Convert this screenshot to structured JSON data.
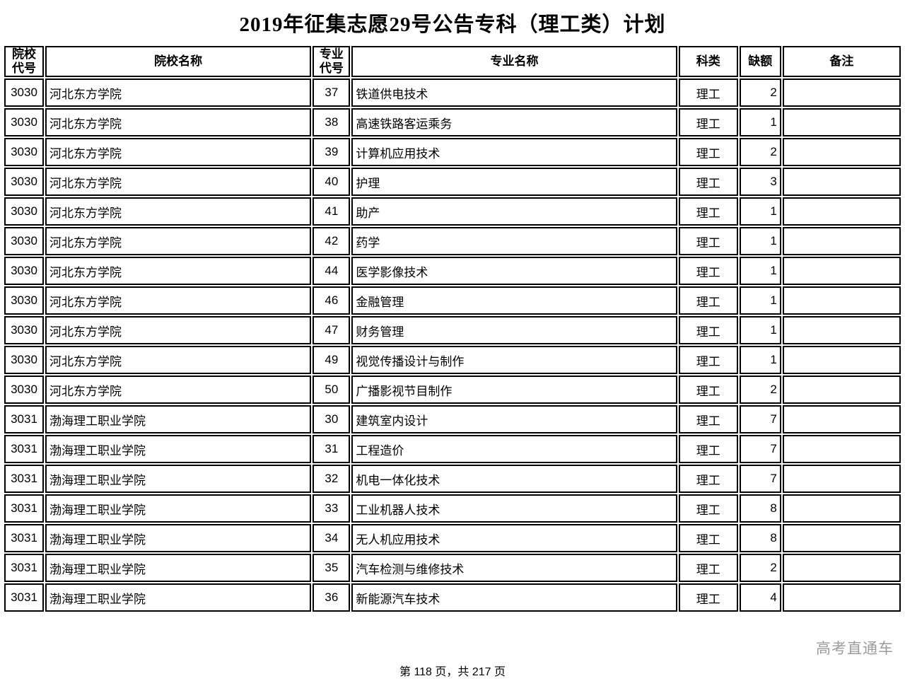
{
  "title": "2019年征集志愿29号公告专科（理工类）计划",
  "table": {
    "columns": [
      {
        "key": "college-code",
        "label": "院校\n代号"
      },
      {
        "key": "college-name",
        "label": "院校名称"
      },
      {
        "key": "major-code",
        "label": "专业\n代号"
      },
      {
        "key": "major-name",
        "label": "专业名称"
      },
      {
        "key": "category",
        "label": "科类"
      },
      {
        "key": "vacancy",
        "label": "缺额"
      },
      {
        "key": "remark",
        "label": "备注"
      }
    ],
    "rows": [
      [
        "3030",
        "河北东方学院",
        "37",
        "铁道供电技术",
        "理工",
        "2",
        ""
      ],
      [
        "3030",
        "河北东方学院",
        "38",
        "高速铁路客运乘务",
        "理工",
        "1",
        ""
      ],
      [
        "3030",
        "河北东方学院",
        "39",
        "计算机应用技术",
        "理工",
        "2",
        ""
      ],
      [
        "3030",
        "河北东方学院",
        "40",
        "护理",
        "理工",
        "3",
        ""
      ],
      [
        "3030",
        "河北东方学院",
        "41",
        "助产",
        "理工",
        "1",
        ""
      ],
      [
        "3030",
        "河北东方学院",
        "42",
        "药学",
        "理工",
        "1",
        ""
      ],
      [
        "3030",
        "河北东方学院",
        "44",
        "医学影像技术",
        "理工",
        "1",
        ""
      ],
      [
        "3030",
        "河北东方学院",
        "46",
        "金融管理",
        "理工",
        "1",
        ""
      ],
      [
        "3030",
        "河北东方学院",
        "47",
        "财务管理",
        "理工",
        "1",
        ""
      ],
      [
        "3030",
        "河北东方学院",
        "49",
        "视觉传播设计与制作",
        "理工",
        "1",
        ""
      ],
      [
        "3030",
        "河北东方学院",
        "50",
        "广播影视节目制作",
        "理工",
        "2",
        ""
      ],
      [
        "3031",
        "渤海理工职业学院",
        "30",
        "建筑室内设计",
        "理工",
        "7",
        ""
      ],
      [
        "3031",
        "渤海理工职业学院",
        "31",
        "工程造价",
        "理工",
        "7",
        ""
      ],
      [
        "3031",
        "渤海理工职业学院",
        "32",
        "机电一体化技术",
        "理工",
        "7",
        ""
      ],
      [
        "3031",
        "渤海理工职业学院",
        "33",
        "工业机器人技术",
        "理工",
        "8",
        ""
      ],
      [
        "3031",
        "渤海理工职业学院",
        "34",
        "无人机应用技术",
        "理工",
        "8",
        ""
      ],
      [
        "3031",
        "渤海理工职业学院",
        "35",
        "汽车检测与维修技术",
        "理工",
        "2",
        ""
      ],
      [
        "3031",
        "渤海理工职业学院",
        "36",
        "新能源汽车技术",
        "理工",
        "4",
        ""
      ]
    ]
  },
  "watermark": "高考直通车",
  "footer": {
    "page_info": "第 118 页，共 217 页"
  }
}
